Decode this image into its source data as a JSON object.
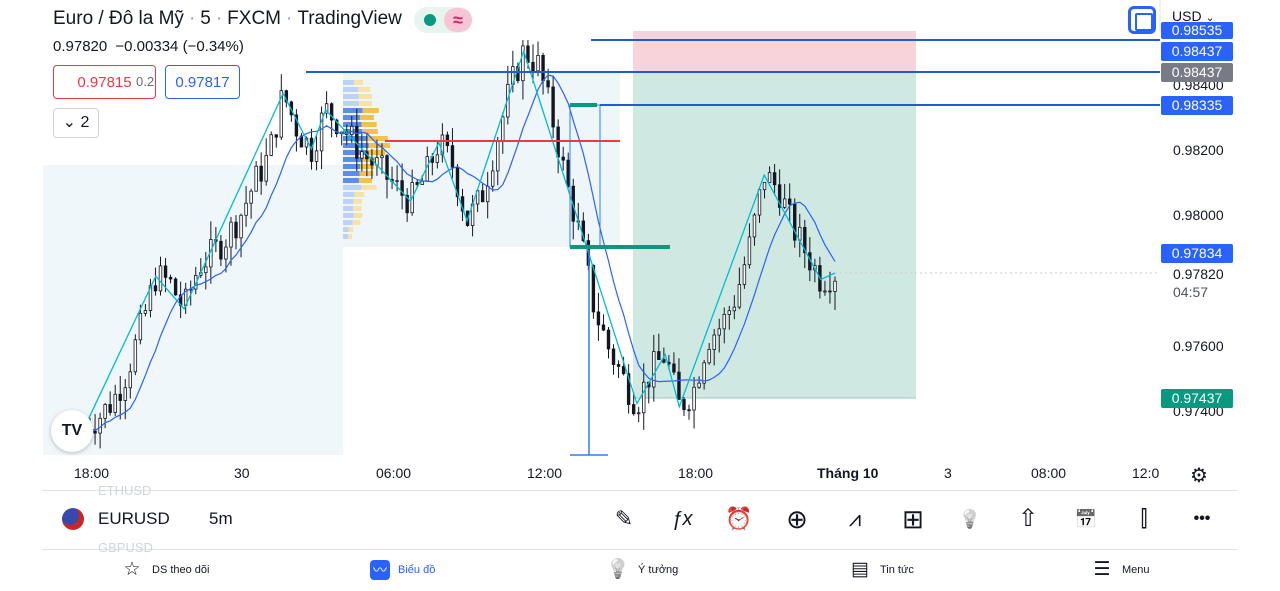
{
  "header": {
    "symbol_name": "Euro / Đô la Mỹ",
    "interval": "5",
    "exchange": "FXCM",
    "brand": "TradingView",
    "status_wave": "≈"
  },
  "quote": {
    "last": "0.97820",
    "change": "−0.00334",
    "change_pct": "(−0.34%)"
  },
  "orders": {
    "sell_price": "0.97815",
    "spread": "0.2",
    "buy_price": "0.97817"
  },
  "indicator_toggle": {
    "count": "2"
  },
  "currency_selector": {
    "label": "USD"
  },
  "price_axis": {
    "ticks": [
      "0.98400",
      "0.98200",
      "0.98000",
      "0.97600",
      "0.97400"
    ],
    "labels": [
      {
        "text": "0.98535",
        "kind": "line"
      },
      {
        "text": "0.98437",
        "kind": "line"
      },
      {
        "text": "0.98437",
        "kind": "gray"
      },
      {
        "text": "0.98335",
        "kind": "line"
      },
      {
        "text": "0.97834",
        "kind": "line"
      },
      {
        "text": "0.97437",
        "kind": "green"
      }
    ],
    "last_price": "0.97820",
    "countdown": "04:57"
  },
  "time_axis": {
    "ticks": [
      "18:00",
      "30",
      "06:00",
      "12:00",
      "18:00",
      "Tháng 10",
      "3",
      "08:00",
      "12:0"
    ]
  },
  "chart_data": {
    "type": "candlestick",
    "symbol": "EURUSD",
    "interval": "5m",
    "price_range": [
      0.9735,
      0.9855
    ],
    "horizontal_levels": [
      0.98535,
      0.98437,
      0.98335,
      0.97834
    ],
    "position": {
      "entry": 0.98437,
      "stop": 0.98535,
      "target": 0.97437
    },
    "price_path": [
      0.9735,
      0.9738,
      0.9743,
      0.9752,
      0.9766,
      0.9781,
      0.9779,
      0.9771,
      0.9784,
      0.9788,
      0.9793,
      0.98,
      0.981,
      0.9818,
      0.9837,
      0.9826,
      0.982,
      0.9832,
      0.9828,
      0.9822,
      0.9817,
      0.9813,
      0.9808,
      0.9804,
      0.9811,
      0.9822,
      0.9815,
      0.9798,
      0.9805,
      0.9821,
      0.9838,
      0.985,
      0.9846,
      0.983,
      0.981,
      0.9793,
      0.9771,
      0.9759,
      0.975,
      0.9742,
      0.9752,
      0.9757,
      0.9741,
      0.9746,
      0.9762,
      0.9766,
      0.9775,
      0.9791,
      0.9812,
      0.9808,
      0.9796,
      0.9788,
      0.978,
      0.9782
    ]
  },
  "symbol_bar": {
    "symbol": "EURUSD",
    "timeframe": "5m",
    "ghost_prev": "ETHUSD",
    "ghost_next": "GBPUSD"
  },
  "toolbar": {
    "tools": [
      {
        "name": "draw-tool-icon",
        "glyph": "✎"
      },
      {
        "name": "indicators-icon",
        "glyph": "ƒx"
      },
      {
        "name": "alert-clock-icon",
        "glyph": "⏰"
      },
      {
        "name": "add-icon",
        "glyph": "⊕"
      },
      {
        "name": "chart-type-icon",
        "glyph": "⩘"
      },
      {
        "name": "layout-grid-icon",
        "glyph": "⊞"
      },
      {
        "name": "idea-bulb-icon",
        "glyph": "💡"
      },
      {
        "name": "share-icon",
        "glyph": "⇧"
      },
      {
        "name": "replay-calendar-icon",
        "glyph": "📅"
      },
      {
        "name": "candle-style-icon",
        "glyph": "⫿"
      },
      {
        "name": "more-icon",
        "glyph": "•••"
      }
    ]
  },
  "bottom_nav": {
    "items": [
      {
        "label": "DS theo dõi",
        "glyph": "☆"
      },
      {
        "label": "Biểu đồ",
        "glyph": "〰"
      },
      {
        "label": "Ý tưởng",
        "glyph": "💡"
      },
      {
        "label": "Tin tức",
        "glyph": "▤"
      },
      {
        "label": "Menu",
        "glyph": "☰"
      }
    ]
  },
  "colors": {
    "line_blue": "#2962ff",
    "level_blue": "#1e5bd6",
    "stop_pink": "#f9d3da",
    "target_green": "#cfe9e2",
    "target_label": "#089981",
    "gray_label": "#787b86",
    "zigzag": "#00bcd4",
    "ma": "#2962ff"
  }
}
